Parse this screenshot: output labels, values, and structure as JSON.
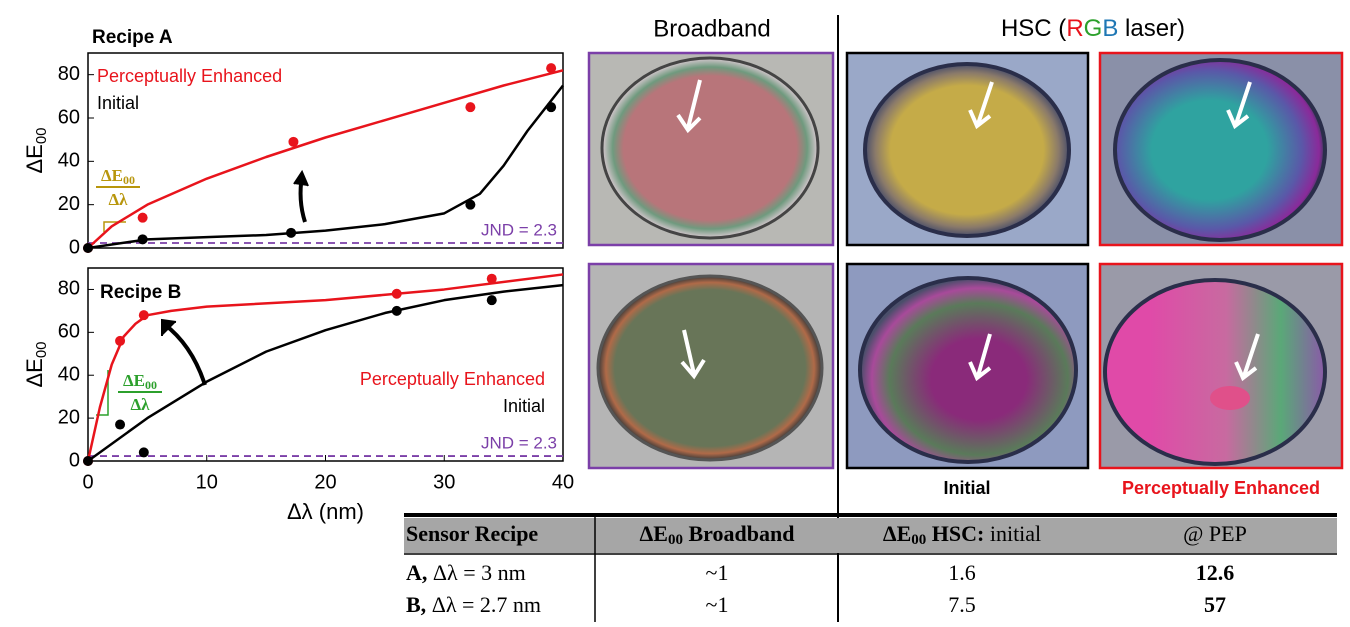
{
  "chart_data": [
    {
      "type": "scatter",
      "title": "Recipe A",
      "ylabel": "ΔE",
      "ylabel_sub": "00",
      "xlim": [
        0,
        40
      ],
      "ylim": [
        0,
        90
      ],
      "yticks": [
        0,
        20,
        40,
        60,
        80
      ],
      "series": [
        {
          "name": "Perceptually Enhanced",
          "color": "#e8141c",
          "x": [
            0,
            4.6,
            17.3,
            32.2,
            39
          ],
          "values": [
            0,
            14,
            49,
            65,
            83
          ],
          "fit_x": [
            0,
            2,
            5,
            10,
            15,
            20,
            25,
            30,
            35,
            40
          ],
          "fit_values": [
            0,
            10,
            20,
            32,
            42,
            51,
            59,
            67,
            75,
            82
          ]
        },
        {
          "name": "Initial",
          "color": "#000000",
          "x": [
            0,
            4.6,
            17.1,
            32.2,
            39
          ],
          "values": [
            0,
            4,
            7,
            20,
            65
          ],
          "fit_x": [
            0,
            5,
            10,
            15,
            20,
            25,
            30,
            33,
            35,
            37,
            40
          ],
          "fit_values": [
            0,
            4,
            5,
            6,
            8,
            11,
            16,
            25,
            38,
            54,
            75
          ]
        }
      ],
      "jnd": {
        "value": 2.3,
        "label": "JND = 2.3",
        "color": "#7b3fa8"
      },
      "slope_label": {
        "top": "ΔE",
        "sub": "00",
        "bottom": "Δλ",
        "color": "#b8960c"
      }
    },
    {
      "type": "scatter",
      "title": "Recipe B",
      "ylabel": "ΔE",
      "ylabel_sub": "00",
      "xlabel": "Δλ (nm)",
      "xlim": [
        0,
        40
      ],
      "ylim": [
        0,
        90
      ],
      "yticks": [
        0,
        20,
        40,
        60,
        80
      ],
      "xticks": [
        0,
        10,
        20,
        30,
        40
      ],
      "series": [
        {
          "name": "Perceptually Enhanced",
          "color": "#e8141c",
          "x": [
            0,
            2.7,
            4.7,
            26,
            34
          ],
          "values": [
            0,
            56,
            68,
            78,
            85
          ],
          "fit_x": [
            0,
            1,
            2,
            3,
            4,
            5,
            7,
            10,
            20,
            30,
            40
          ],
          "fit_values": [
            0,
            25,
            45,
            58,
            64,
            68,
            70,
            72,
            75,
            80,
            87
          ]
        },
        {
          "name": "Initial",
          "color": "#000000",
          "x": [
            0,
            2.7,
            4.7,
            26,
            34
          ],
          "values": [
            0,
            17,
            4,
            70,
            75
          ],
          "fit_x": [
            0,
            5,
            10,
            15,
            20,
            25,
            30,
            35,
            40
          ],
          "fit_values": [
            0,
            20,
            37,
            51,
            61,
            69,
            75,
            79,
            82
          ]
        }
      ],
      "jnd": {
        "value": 2.3,
        "label": "JND = 2.3",
        "color": "#7b3fa8"
      },
      "slope_label": {
        "top": "ΔE",
        "sub": "00",
        "bottom": "Δλ",
        "color": "#2ca02c"
      }
    }
  ],
  "photos": {
    "broadband_header": "Broadband",
    "hsc_header": [
      {
        "text": "HSC ("
      },
      {
        "text": "R",
        "color": "#e8141c"
      },
      {
        "text": "G",
        "color": "#2ca02c"
      },
      {
        "text": "B",
        "color": "#1f77b4"
      },
      {
        "text": " laser)"
      }
    ],
    "captions": [
      {
        "text": "Initial",
        "color": "#000000"
      },
      {
        "text": "Perceptually Enhanced",
        "color": "#e8141c"
      }
    ]
  },
  "table": {
    "header": [
      [
        {
          "text": "Sensor Recipe",
          "bold": true
        }
      ],
      [
        {
          "text": "ΔE",
          "bold": true
        },
        {
          "text": "00",
          "bold": true,
          "sub": true
        },
        {
          "text": " Broadband",
          "bold": true
        }
      ],
      [
        {
          "text": "ΔE",
          "bold": true
        },
        {
          "text": "00",
          "bold": true,
          "sub": true
        },
        {
          "text": " HSC:",
          "bold": true
        },
        {
          "text": " initial"
        }
      ],
      [
        {
          "text": "@ PEP"
        }
      ]
    ],
    "rows": [
      [
        [
          {
            "text": "A,",
            "bold": true
          },
          {
            "text": " Δλ = 3 nm"
          }
        ],
        [
          {
            "text": "~1"
          }
        ],
        [
          {
            "text": 1.6
          }
        ],
        [
          {
            "text": 12.6,
            "bold": true
          }
        ]
      ],
      [
        [
          {
            "text": "B,",
            "bold": true
          },
          {
            "text": " Δλ = 2.7 nm"
          }
        ],
        [
          {
            "text": "~1"
          }
        ],
        [
          {
            "text": 7.5
          }
        ],
        [
          {
            "text": 57,
            "bold": true
          }
        ]
      ]
    ]
  }
}
